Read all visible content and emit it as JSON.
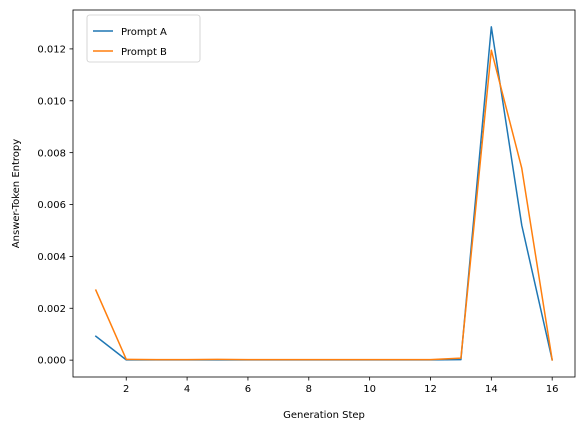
{
  "chart_data": {
    "type": "line",
    "title": "",
    "xlabel": "Generation Step",
    "ylabel": "Answer-Token Entropy",
    "xlim": [
      0.25,
      16.75
    ],
    "ylim": [
      -0.00065,
      0.0135
    ],
    "xticks": [
      2,
      4,
      6,
      8,
      10,
      12,
      14,
      16
    ],
    "yticks": [
      0.0,
      0.002,
      0.004,
      0.006,
      0.008,
      0.01,
      0.012
    ],
    "ytick_labels": [
      "0.000",
      "0.002",
      "0.004",
      "0.006",
      "0.008",
      "0.010",
      "0.012"
    ],
    "grid": false,
    "legend": {
      "position": "top-left"
    },
    "x": [
      1,
      2,
      3,
      4,
      5,
      6,
      7,
      8,
      9,
      10,
      11,
      12,
      13,
      14,
      15,
      16
    ],
    "series": [
      {
        "name": "Prompt A",
        "color": "#1f77b4",
        "values": [
          0.00092,
          1e-05,
          1e-05,
          1e-05,
          1e-05,
          1e-05,
          1e-05,
          1e-05,
          1e-05,
          1e-05,
          1e-05,
          1e-05,
          2e-05,
          0.01285,
          0.0052,
          1e-05
        ]
      },
      {
        "name": "Prompt B",
        "color": "#ff7f0e",
        "values": [
          0.0027,
          3e-05,
          2e-05,
          2e-05,
          3e-05,
          2e-05,
          2e-05,
          2e-05,
          2e-05,
          2e-05,
          2e-05,
          2e-05,
          8e-05,
          0.01195,
          0.0074,
          1e-05
        ]
      }
    ]
  }
}
